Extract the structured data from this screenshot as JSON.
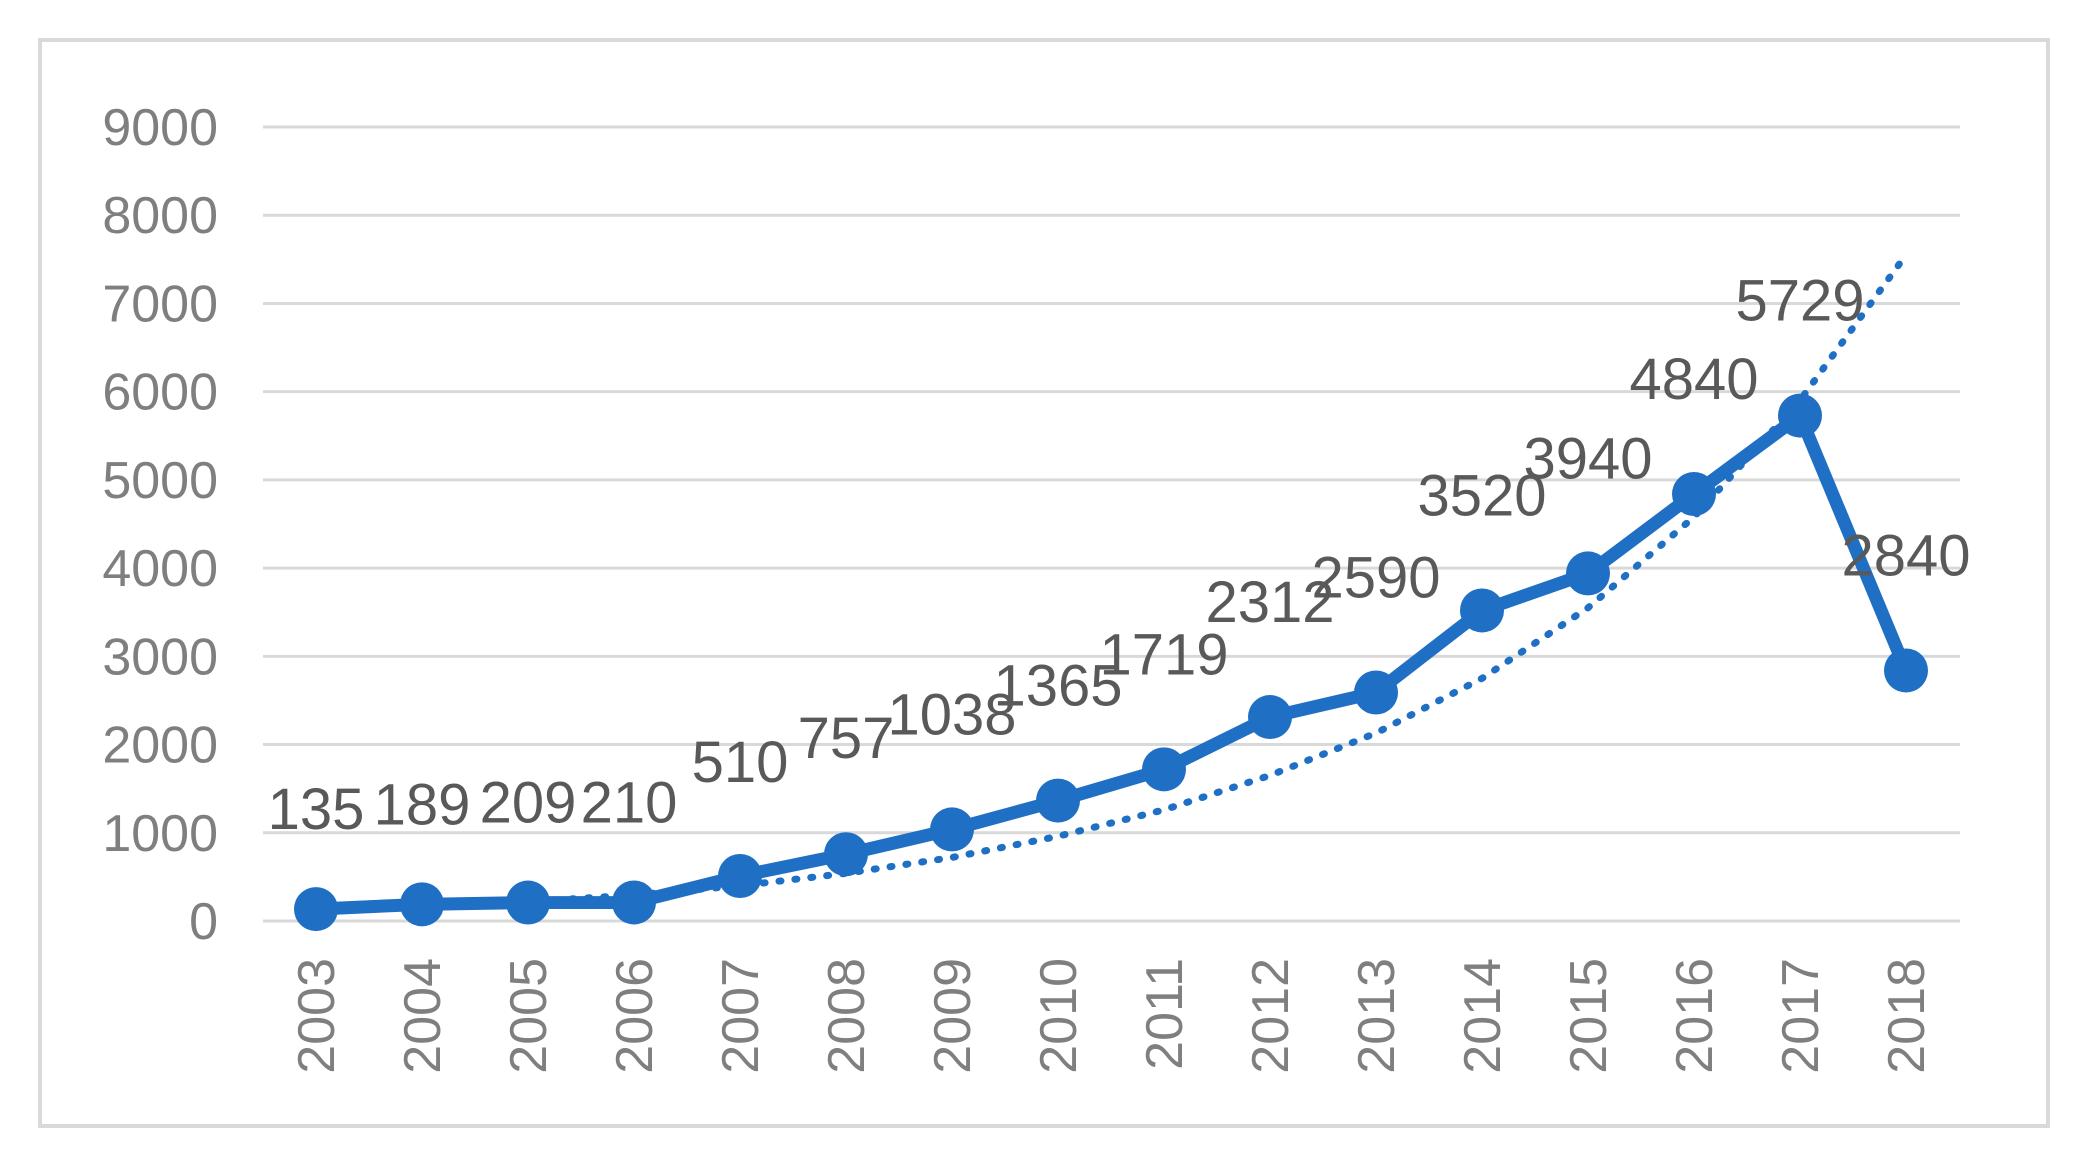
{
  "chart_data": {
    "type": "line",
    "title": "",
    "xlabel": "",
    "ylabel": "",
    "categories": [
      "2003",
      "2004",
      "2005",
      "2006",
      "2007",
      "2008",
      "2009",
      "2010",
      "2011",
      "2012",
      "2013",
      "2014",
      "2015",
      "2016",
      "2017",
      "2018"
    ],
    "series": [
      {
        "values": [
          135,
          189,
          209,
          210,
          510,
          757,
          1038,
          1365,
          1719,
          2312,
          2590,
          3520,
          3940,
          4840,
          5729,
          2840
        ],
        "labels": [
          "135",
          "189",
          "209",
          "210",
          "510",
          "757",
          "1038",
          "1365",
          "1719",
          "2312",
          "2590",
          "3520",
          "3940",
          "4840",
          "5729",
          "2840"
        ],
        "color": "#1f6fc5",
        "markers": true,
        "data_labels": true
      }
    ],
    "trendline": {
      "kind": "exponential",
      "style": "dotted",
      "color": "#1f6fc5",
      "values": [
        135,
        170,
        220,
        295,
        400,
        540,
        720,
        960,
        1260,
        1650,
        2130,
        2750,
        3550,
        4580,
        5900,
        7550
      ]
    },
    "y_ticks": [
      "0",
      "1000",
      "2000",
      "3000",
      "4000",
      "5000",
      "6000",
      "7000",
      "8000",
      "9000"
    ],
    "ylim": [
      0,
      9000
    ],
    "grid": true,
    "legend": "none"
  }
}
